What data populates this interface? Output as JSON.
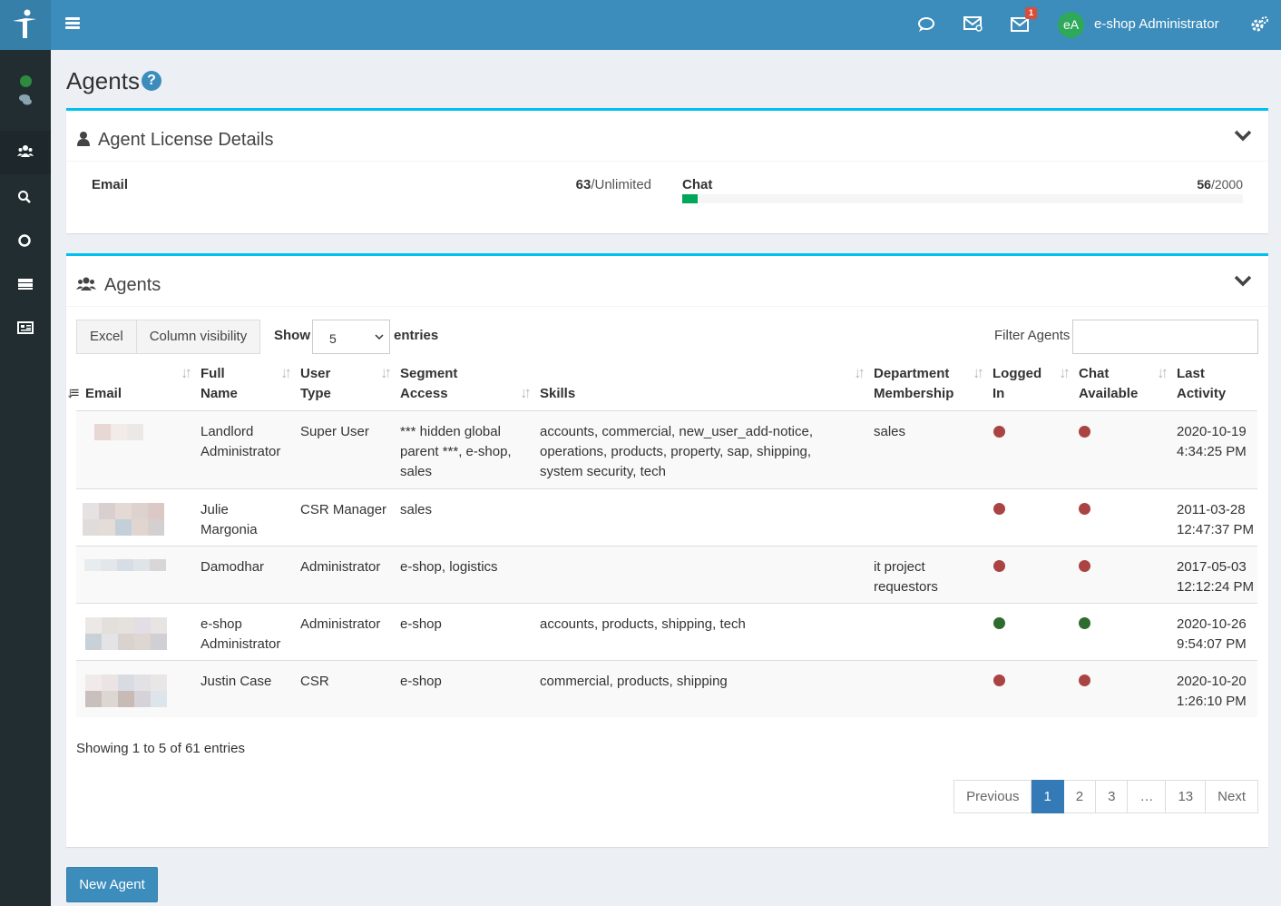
{
  "header": {
    "user_initials": "eA",
    "user_name": "e-shop Administrator",
    "notification_count": "1"
  },
  "page": {
    "title": "Agents",
    "help_glyph": "?"
  },
  "license": {
    "title": "Agent License Details",
    "email_label": "Email",
    "email_used": "63",
    "email_limit": "/Unlimited",
    "chat_label": "Chat",
    "chat_used": "56",
    "chat_limit": "/2000",
    "chat_fraction": 0.028
  },
  "agents_box": {
    "title": "Agents",
    "excel_label": "Excel",
    "column_visibility_label": "Column visibility",
    "show_label": "Show",
    "page_size": "5",
    "entries_label": "entries",
    "filter_label": "Filter Agents"
  },
  "table": {
    "headers": {
      "email": "Email",
      "full_name_1": "Full",
      "full_name_2": "Name",
      "user_type_1": "User",
      "user_type_2": "Type",
      "segment_1": "Segment",
      "segment_2": "Access",
      "skills": "Skills",
      "department_1": "Department",
      "department_2": "Membership",
      "logged_1": "Logged",
      "logged_2": "In",
      "chat_1": "Chat",
      "chat_2": "Available",
      "activity_1": "Last",
      "activity_2": "Activity"
    },
    "rows": [
      {
        "name_1": "Landlord",
        "name_2": "Administrator",
        "type": "Super User",
        "seg_1": "*** hidden global",
        "seg_2": "parent ***, e-shop,",
        "seg_3": "sales",
        "skills_1": "accounts, commercial, new_user_add-notice,",
        "skills_2": "operations, products, property, sap, shipping,",
        "skills_3": "system security, tech",
        "dept_1": "sales",
        "dept_2": "",
        "logged_in": "red",
        "chat_available": "red",
        "act_1": "2020-10-19",
        "act_2": "4:34:25 PM"
      },
      {
        "name_1": "Julie",
        "name_2": "Margonia",
        "type": "CSR Manager",
        "seg_1": "sales",
        "seg_2": "",
        "seg_3": "",
        "skills_1": "",
        "skills_2": "",
        "skills_3": "",
        "dept_1": "",
        "dept_2": "",
        "logged_in": "red",
        "chat_available": "red",
        "act_1": "2011-03-28",
        "act_2": "12:47:37 PM"
      },
      {
        "name_1": "Damodhar",
        "name_2": "",
        "type": "Administrator",
        "seg_1": "e-shop, logistics",
        "seg_2": "",
        "seg_3": "",
        "skills_1": "",
        "skills_2": "",
        "skills_3": "",
        "dept_1": "it project",
        "dept_2": "requestors",
        "logged_in": "red",
        "chat_available": "red",
        "act_1": "2017-05-03",
        "act_2": "12:12:24 PM"
      },
      {
        "name_1": "e-shop",
        "name_2": "Administrator",
        "type": "Administrator",
        "seg_1": "e-shop",
        "seg_2": "",
        "seg_3": "",
        "skills_1": "accounts, products, shipping, tech",
        "skills_2": "",
        "skills_3": "",
        "dept_1": "",
        "dept_2": "",
        "logged_in": "green",
        "chat_available": "green",
        "act_1": "2020-10-26",
        "act_2": "9:54:07 PM"
      },
      {
        "name_1": "Justin Case",
        "name_2": "",
        "type": "CSR",
        "seg_1": "e-shop",
        "seg_2": "",
        "seg_3": "",
        "skills_1": "commercial, products, shipping",
        "skills_2": "",
        "skills_3": "",
        "dept_1": "",
        "dept_2": "",
        "logged_in": "red",
        "chat_available": "red",
        "act_1": "2020-10-20",
        "act_2": "1:26:10 PM"
      }
    ],
    "info": "Showing 1 to 5 of 61 entries"
  },
  "pagination": {
    "previous": "Previous",
    "pages": [
      "1",
      "2",
      "3",
      "…",
      "13"
    ],
    "next": "Next",
    "current": "1"
  },
  "actions": {
    "new_agent": "New Agent"
  },
  "colors": {
    "topbar": "#3c8dbc",
    "sidebar": "#222d32",
    "box_accent": "#00c0ef",
    "status_red": "#a94442",
    "status_green": "#2e6b2e",
    "progress": "#00a65a"
  },
  "icons": [
    "menu-icon",
    "chat-bubble-icon",
    "mail-settings-icon",
    "envelope-icon",
    "cogs-icon",
    "user-icon",
    "users-icon",
    "search-icon",
    "circle-icon",
    "server-icon",
    "newspaper-icon",
    "chevron-down-icon",
    "sort-icon"
  ]
}
